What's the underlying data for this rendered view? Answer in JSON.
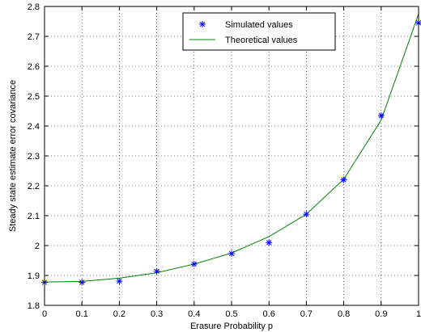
{
  "chart_data": {
    "type": "line",
    "xlabel": "Erasure Probability p",
    "ylabel": "Steady state estimate error covariance",
    "xlim": [
      0,
      1
    ],
    "ylim": [
      1.8,
      2.8
    ],
    "x_ticks": [
      "0",
      "0.1",
      "0.2",
      "0.3",
      "0.4",
      "0.5",
      "0.6",
      "0.7",
      "0.8",
      "0.9",
      "1"
    ],
    "y_ticks": [
      "1.8",
      "1.9",
      "2",
      "2.1",
      "2.2",
      "2.3",
      "2.4",
      "2.5",
      "2.6",
      "2.7",
      "2.8"
    ],
    "grid": true,
    "legend_position": "top-center",
    "series": [
      {
        "name": "Simulated values",
        "style": "markers",
        "marker": "asterisk",
        "color": "#0000ff",
        "x": [
          0,
          0.1,
          0.2,
          0.3,
          0.4,
          0.5,
          0.6,
          0.7,
          0.8,
          0.9,
          1.0
        ],
        "y": [
          1.877,
          1.877,
          1.881,
          1.914,
          1.938,
          1.973,
          2.01,
          2.105,
          2.22,
          2.435,
          2.745
        ]
      },
      {
        "name": "Theoretical values",
        "style": "line",
        "color": "#008000",
        "x": [
          0,
          0.1,
          0.2,
          0.3,
          0.4,
          0.5,
          0.6,
          0.7,
          0.8,
          0.9,
          1.0
        ],
        "y": [
          1.878,
          1.88,
          1.891,
          1.909,
          1.938,
          1.975,
          2.03,
          2.105,
          2.222,
          2.42,
          2.775
        ]
      }
    ]
  }
}
